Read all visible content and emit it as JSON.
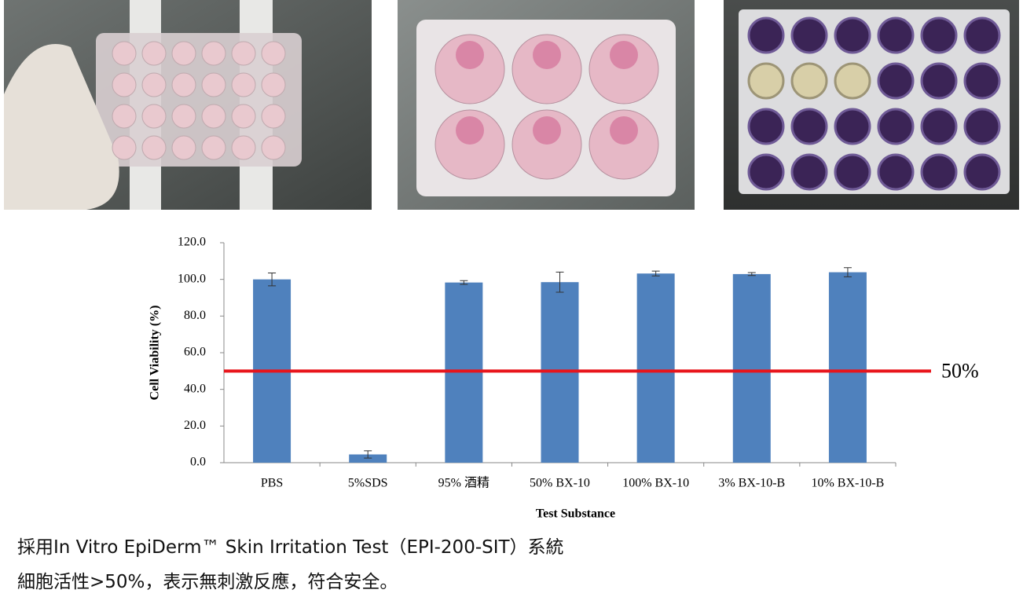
{
  "chart_data": {
    "type": "bar",
    "categories": [
      "PBS",
      "5%SDS",
      "95% 酒精",
      "50% BX-10",
      "100% BX-10",
      "3% BX-10-B",
      "10% BX-10-B"
    ],
    "values": [
      100,
      4.5,
      98.3,
      98.5,
      103.2,
      102.9,
      103.9
    ],
    "errors": [
      3.5,
      2,
      1,
      5.5,
      1.3,
      0.8,
      2.5
    ],
    "color": "#4f81bd",
    "y_label": "Cell Viability (%)",
    "x_label": "Test Substance",
    "ylim": [
      0,
      120
    ],
    "yticks": [
      {
        "value": 0,
        "label": "0.0"
      },
      {
        "value": 20,
        "label": "20.0"
      },
      {
        "value": 40,
        "label": "40.0"
      },
      {
        "value": 60,
        "label": "60.0"
      },
      {
        "value": 80,
        "label": "80.0"
      },
      {
        "value": 100,
        "label": "100.0"
      },
      {
        "value": 120,
        "label": "120.0"
      }
    ],
    "grid": false,
    "reference_line": {
      "value": 50,
      "label": "50%",
      "color": "#e8141b"
    }
  },
  "caption": [
    "採用In Vitro EpiDerm™ Skin Irritation Test（EPI-200-SIT）系統",
    "細胞活性>50%，表示無刺激反應，符合安全。"
  ]
}
